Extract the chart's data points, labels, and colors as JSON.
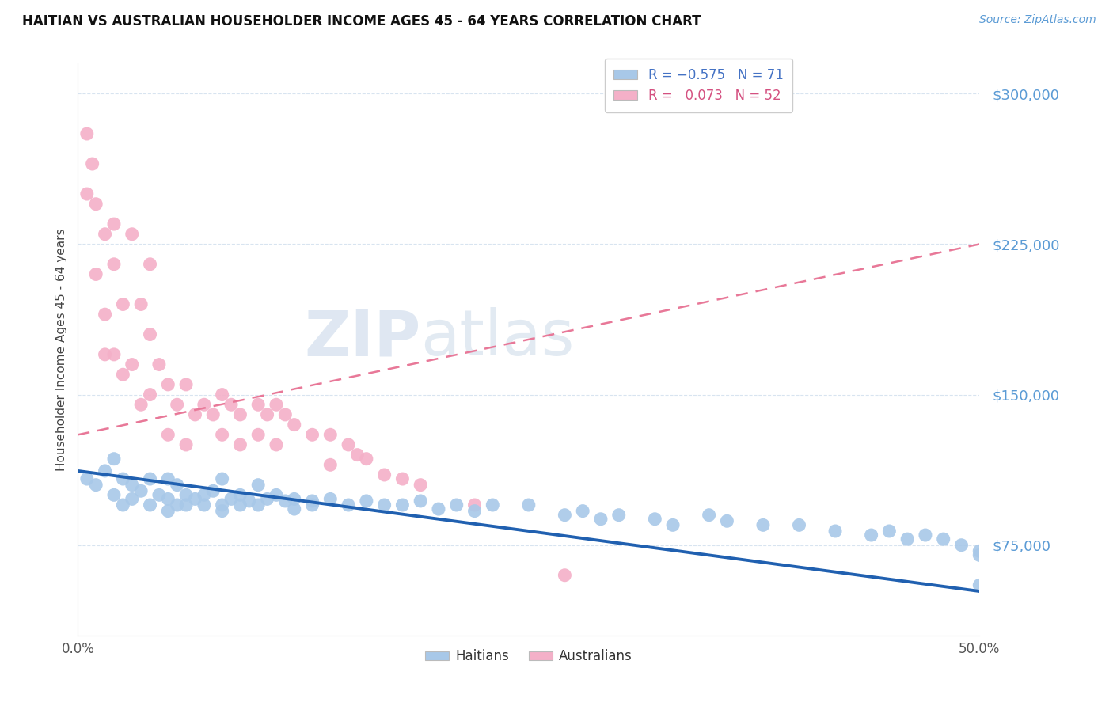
{
  "title": "HAITIAN VS AUSTRALIAN HOUSEHOLDER INCOME AGES 45 - 64 YEARS CORRELATION CHART",
  "source_text": "Source: ZipAtlas.com",
  "ylabel": "Householder Income Ages 45 - 64 years",
  "ytick_labels": [
    "$75,000",
    "$150,000",
    "$225,000",
    "$300,000"
  ],
  "ytick_values": [
    75000,
    150000,
    225000,
    300000
  ],
  "ymin": 30000,
  "ymax": 315000,
  "xmin": 0.0,
  "xmax": 0.5,
  "haitian_color": "#a8c8e8",
  "australian_color": "#f4b0c8",
  "haitian_line_color": "#2060b0",
  "australian_line_color": "#e87898",
  "grid_color": "#d8e4f0",
  "bg_color": "#ffffff",
  "haitian_x": [
    0.005,
    0.01,
    0.015,
    0.02,
    0.02,
    0.025,
    0.025,
    0.03,
    0.03,
    0.035,
    0.04,
    0.04,
    0.045,
    0.05,
    0.05,
    0.05,
    0.055,
    0.055,
    0.06,
    0.06,
    0.065,
    0.07,
    0.07,
    0.075,
    0.08,
    0.08,
    0.08,
    0.085,
    0.09,
    0.09,
    0.095,
    0.1,
    0.1,
    0.105,
    0.11,
    0.115,
    0.12,
    0.12,
    0.13,
    0.13,
    0.14,
    0.15,
    0.16,
    0.17,
    0.18,
    0.19,
    0.2,
    0.21,
    0.22,
    0.23,
    0.25,
    0.27,
    0.28,
    0.29,
    0.3,
    0.32,
    0.33,
    0.35,
    0.36,
    0.38,
    0.4,
    0.42,
    0.44,
    0.45,
    0.46,
    0.47,
    0.48,
    0.49,
    0.5,
    0.5,
    0.5
  ],
  "haitian_y": [
    108000,
    105000,
    112000,
    100000,
    118000,
    108000,
    95000,
    105000,
    98000,
    102000,
    108000,
    95000,
    100000,
    108000,
    98000,
    92000,
    105000,
    95000,
    100000,
    95000,
    98000,
    100000,
    95000,
    102000,
    95000,
    108000,
    92000,
    98000,
    100000,
    95000,
    97000,
    105000,
    95000,
    98000,
    100000,
    97000,
    98000,
    93000,
    97000,
    95000,
    98000,
    95000,
    97000,
    95000,
    95000,
    97000,
    93000,
    95000,
    92000,
    95000,
    95000,
    90000,
    92000,
    88000,
    90000,
    88000,
    85000,
    90000,
    87000,
    85000,
    85000,
    82000,
    80000,
    82000,
    78000,
    80000,
    78000,
    75000,
    72000,
    70000,
    55000
  ],
  "australian_x": [
    0.005,
    0.005,
    0.008,
    0.01,
    0.01,
    0.015,
    0.015,
    0.015,
    0.02,
    0.02,
    0.02,
    0.025,
    0.025,
    0.03,
    0.03,
    0.035,
    0.035,
    0.04,
    0.04,
    0.04,
    0.045,
    0.05,
    0.05,
    0.055,
    0.06,
    0.06,
    0.065,
    0.07,
    0.075,
    0.08,
    0.08,
    0.085,
    0.09,
    0.09,
    0.1,
    0.1,
    0.105,
    0.11,
    0.11,
    0.115,
    0.12,
    0.13,
    0.14,
    0.14,
    0.15,
    0.155,
    0.16,
    0.17,
    0.18,
    0.19,
    0.22,
    0.27
  ],
  "australian_y": [
    280000,
    250000,
    265000,
    245000,
    210000,
    230000,
    190000,
    170000,
    235000,
    215000,
    170000,
    195000,
    160000,
    230000,
    165000,
    195000,
    145000,
    215000,
    180000,
    150000,
    165000,
    155000,
    130000,
    145000,
    155000,
    125000,
    140000,
    145000,
    140000,
    150000,
    130000,
    145000,
    140000,
    125000,
    145000,
    130000,
    140000,
    145000,
    125000,
    140000,
    135000,
    130000,
    130000,
    115000,
    125000,
    120000,
    118000,
    110000,
    108000,
    105000,
    95000,
    60000
  ],
  "haitian_trend_x": [
    0.0,
    0.5
  ],
  "haitian_trend_y": [
    112000,
    52000
  ],
  "australian_trend_x": [
    0.0,
    0.5
  ],
  "australian_trend_y": [
    130000,
    225000
  ]
}
